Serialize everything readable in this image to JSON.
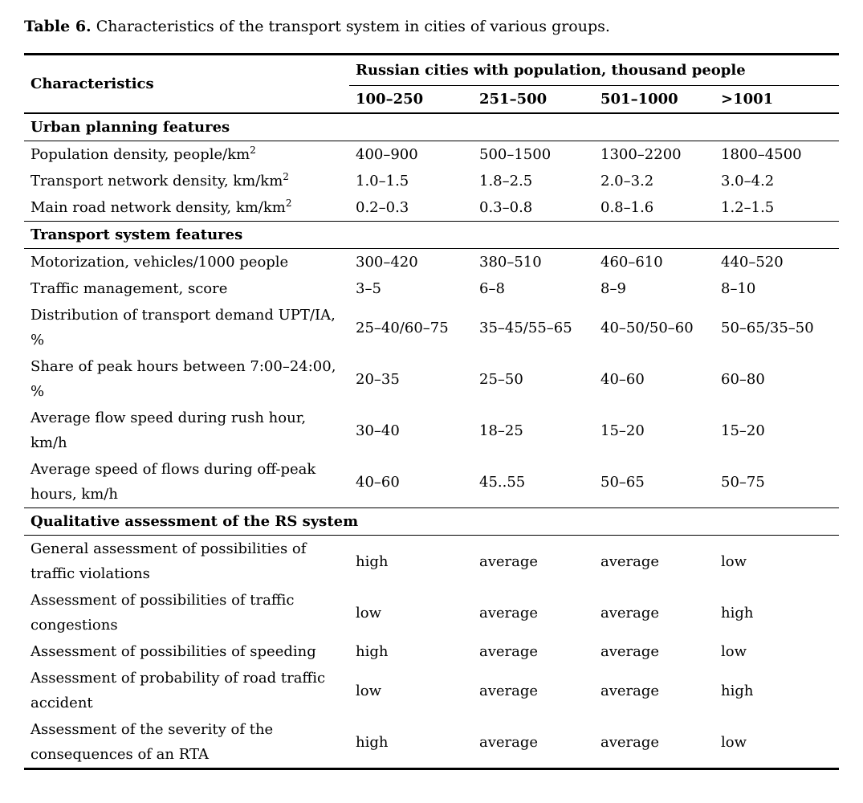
{
  "title": {
    "label": "Table 6.",
    "text": "Characteristics of the transport system in cities of various groups."
  },
  "table": {
    "col1_header": "Characteristics",
    "group_header": "Russian cities with population, thousand people",
    "col_headers": [
      "100–250",
      "251–500",
      "501–1000",
      ">1001"
    ],
    "sections": [
      {
        "header": "Urban planning features",
        "rows": [
          {
            "label": "Population density, people/km",
            "sup": "2",
            "values": [
              "400–900",
              "500–1500",
              "1300–2200",
              "1800–4500"
            ]
          },
          {
            "label": "Transport network density, km/km",
            "sup": "2",
            "values": [
              "1.0–1.5",
              "1.8–2.5",
              "2.0–3.2",
              "3.0–4.2"
            ]
          },
          {
            "label": "Main road network density, km/km",
            "sup": "2",
            "values": [
              "0.2–0.3",
              "0.3–0.8",
              "0.8–1.6",
              "1.2–1.5"
            ]
          }
        ]
      },
      {
        "header": "Transport system features",
        "rows": [
          {
            "label": "Motorization, vehicles/1000 people",
            "values": [
              "300–420",
              "380–510",
              "460–610",
              "440–520"
            ]
          },
          {
            "label": "Traffic management, score",
            "values": [
              "3–5",
              "6–8",
              "8–9",
              "8–10"
            ]
          },
          {
            "label": "Distribution of transport demand UPT/IA, %",
            "values": [
              "25–40/60–75",
              "35–45/55–65",
              "40–50/50–60",
              "50–65/35–50"
            ]
          },
          {
            "label": "Share of peak hours between 7:00–24:00, %",
            "values": [
              "20–35",
              "25–50",
              "40–60",
              "60–80"
            ]
          },
          {
            "label": "Average flow speed during rush hour, km/h",
            "values": [
              "30–40",
              "18–25",
              "15–20",
              "15–20"
            ]
          },
          {
            "label": "Average speed of flows during off-peak hours, km/h",
            "values": [
              "40–60",
              "45..55",
              "50–65",
              "50–75"
            ]
          }
        ]
      },
      {
        "header": "Qualitative assessment of the RS system",
        "rows": [
          {
            "label": "General assessment of possibilities of traffic violations",
            "values": [
              "high",
              "average",
              "average",
              "low"
            ]
          },
          {
            "label": "Assessment of possibilities of traffic congestions",
            "values": [
              "low",
              "average",
              "average",
              "high"
            ]
          },
          {
            "label": "Assessment of possibilities of speeding",
            "values": [
              "high",
              "average",
              "average",
              "low"
            ]
          },
          {
            "label": "Assessment of probability of road traffic accident",
            "values": [
              "low",
              "average",
              "average",
              "high"
            ]
          },
          {
            "label": "Assessment of the severity of the consequences of an RTA",
            "values": [
              "high",
              "average",
              "average",
              "low"
            ]
          }
        ]
      }
    ]
  }
}
